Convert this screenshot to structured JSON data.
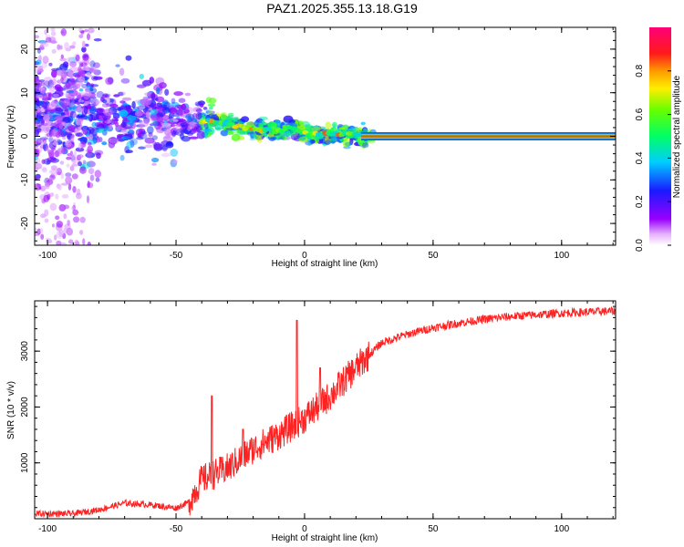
{
  "title": "PAZ1.2025.355.13.18.G19",
  "chart_data": [
    {
      "type": "heatmap",
      "xlabel": "Height of straight line (km)",
      "ylabel": "Frequency (Hz)",
      "xlim": [
        -105,
        121
      ],
      "ylim": [
        -25,
        25
      ],
      "xticks": [
        -100,
        -50,
        0,
        50,
        100
      ],
      "yticks": [
        -20,
        -10,
        0,
        10,
        20
      ],
      "colorbar": {
        "label": "Normalized spectral amplitude",
        "range": [
          0.0,
          1.0
        ],
        "ticks": [
          "0.0",
          "0.2",
          "0.4",
          "0.6",
          "0.8"
        ],
        "colormap": "rainbow (white-violet-blue-cyan-green-yellow-red-magenta)"
      },
      "ridge": {
        "description": "scattered low-amplitude energy below -40 km; narrow stable tone near 0 Hz above ~20 km",
        "points": [
          {
            "x": -104,
            "y": 6
          },
          {
            "x": -90,
            "y": 5
          },
          {
            "x": -75,
            "y": 5
          },
          {
            "x": -60,
            "y": 5
          },
          {
            "x": -50,
            "y": 4
          },
          {
            "x": -40,
            "y": 3.5
          },
          {
            "x": -30,
            "y": 3
          },
          {
            "x": -20,
            "y": 1.5
          },
          {
            "x": -10,
            "y": 1
          },
          {
            "x": -5,
            "y": 2
          },
          {
            "x": 0,
            "y": 0.5
          },
          {
            "x": 10,
            "y": 0.5
          },
          {
            "x": 18,
            "y": 0.5
          },
          {
            "x": 22,
            "y": 0
          },
          {
            "x": 121,
            "y": 0
          }
        ],
        "stable_from_x": 22,
        "stable_amplitude": 0.85
      },
      "grid": false
    },
    {
      "type": "line",
      "xlabel": "Height of straight line (km)",
      "ylabel": "SNR (10 * v/v)",
      "xlim": [
        -105,
        121
      ],
      "ylim": [
        0,
        3900
      ],
      "xticks": [
        -100,
        -50,
        0,
        50,
        100
      ],
      "yticks": [
        1000,
        2000,
        3000
      ],
      "series_color": "#ff2222",
      "trend": [
        {
          "x": -105,
          "snr": 90
        },
        {
          "x": -90,
          "snr": 90
        },
        {
          "x": -80,
          "snr": 160
        },
        {
          "x": -70,
          "snr": 280
        },
        {
          "x": -60,
          "snr": 250
        },
        {
          "x": -50,
          "snr": 190
        },
        {
          "x": -45,
          "snr": 300
        },
        {
          "x": -40,
          "snr": 700
        },
        {
          "x": -30,
          "snr": 900
        },
        {
          "x": -20,
          "snr": 1250
        },
        {
          "x": -10,
          "snr": 1500
        },
        {
          "x": 0,
          "snr": 1800
        },
        {
          "x": 10,
          "snr": 2200
        },
        {
          "x": 20,
          "snr": 2700
        },
        {
          "x": 30,
          "snr": 3150
        },
        {
          "x": 40,
          "snr": 3300
        },
        {
          "x": 50,
          "snr": 3420
        },
        {
          "x": 60,
          "snr": 3500
        },
        {
          "x": 70,
          "snr": 3570
        },
        {
          "x": 80,
          "snr": 3620
        },
        {
          "x": 90,
          "snr": 3650
        },
        {
          "x": 100,
          "snr": 3680
        },
        {
          "x": 110,
          "snr": 3700
        },
        {
          "x": 121,
          "snr": 3720
        }
      ],
      "peaks": [
        {
          "x": -36,
          "snr": 2200
        },
        {
          "x": -24,
          "snr": 1600
        },
        {
          "x": -3,
          "snr": 3550
        },
        {
          "x": 6,
          "snr": 2700
        }
      ],
      "noise_amplitude_range": [
        150,
        550
      ],
      "grid": false
    }
  ]
}
